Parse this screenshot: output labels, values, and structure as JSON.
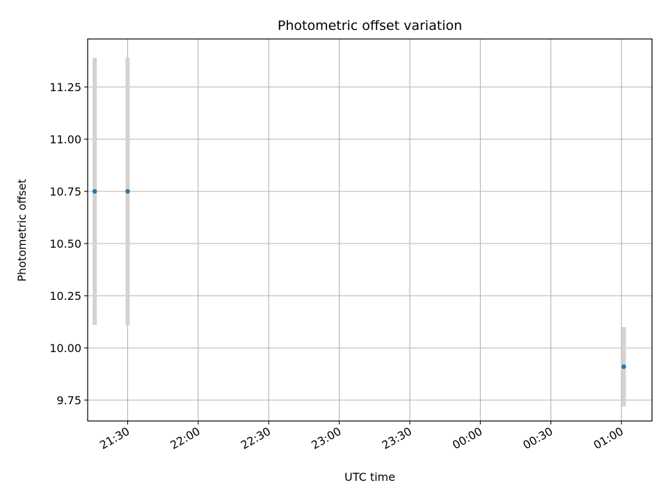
{
  "chart_data": {
    "type": "scatter",
    "title": "Photometric offset variation",
    "xlabel": "UTC time",
    "ylabel": "Photometric offset",
    "x_ticks": [
      "21:30",
      "22:00",
      "22:30",
      "23:00",
      "23:30",
      "00:00",
      "00:30",
      "01:00"
    ],
    "y_ticks": [
      "9.75",
      "10.00",
      "10.25",
      "10.50",
      "10.75",
      "11.00",
      "11.25"
    ],
    "xlim": [
      "21:13",
      "01:13"
    ],
    "ylim": [
      9.65,
      11.48
    ],
    "grid": true,
    "errorbar_color": "#d3d3d3",
    "point_color": "#1f77b4",
    "points": [
      {
        "x": "21:16",
        "y": 10.75,
        "err": 0.64
      },
      {
        "x": "21:30",
        "y": 10.75,
        "err": 0.64
      },
      {
        "x": "01:01",
        "y": 9.91,
        "err": 0.19
      }
    ]
  }
}
